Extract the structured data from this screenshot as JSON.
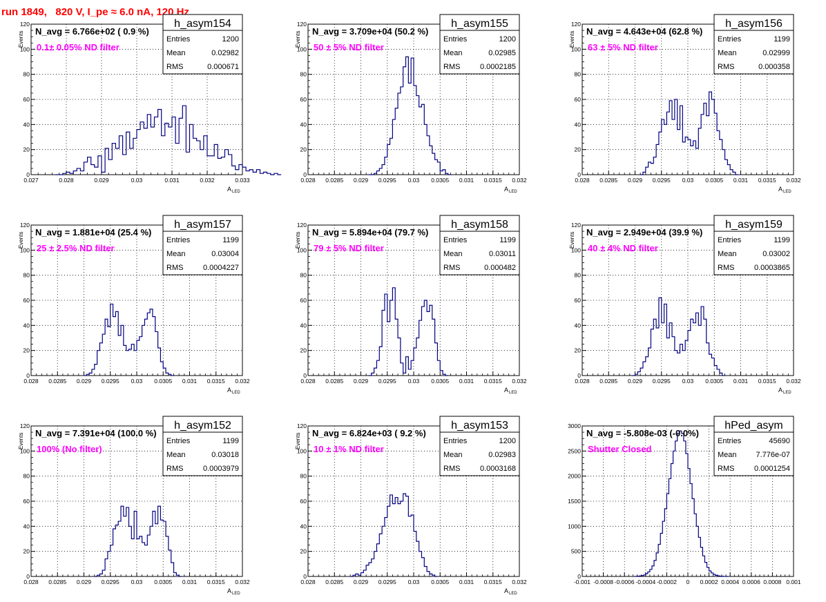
{
  "page": {
    "run_title": "run 1849,   820 V, I_pe ≈ 6.0 nA, 120 Hz"
  },
  "colors": {
    "histogram_line": "#000080",
    "annotation_magenta": "#ff00ff",
    "title_red": "#ff0000",
    "grid": "#000000"
  },
  "chart_data": [
    {
      "type": "histogram",
      "name": "h_asym154",
      "nd_label": "N_avg = 6.766e+02 ( 0.9 %)",
      "filter_label": "0.1± 0.05% ND filter",
      "stats": {
        "entries_label": "Entries",
        "entries": "1200",
        "mean_label": "Mean",
        "mean": "0.02982",
        "rms_label": "RMS",
        "rms": "0.000671"
      },
      "ylabel": "Events",
      "xlabel": "A",
      "xlabel_sub": "LED",
      "xlim": [
        0.027,
        0.033
      ],
      "ylim": [
        0,
        120
      ],
      "xticks": [
        "0.027",
        "0.028",
        "0.029",
        "0.03",
        "0.031",
        "0.032",
        "0.033"
      ],
      "xtick_values": [
        0.027,
        0.028,
        0.029,
        0.03,
        0.031,
        0.032,
        0.033
      ],
      "yticks": [
        "0",
        "20",
        "40",
        "60",
        "80",
        "100",
        "120"
      ],
      "bin_width": 0.0001,
      "x0": 0.0277,
      "values": [
        0,
        0,
        1,
        2,
        1,
        3,
        5,
        3,
        10,
        14,
        8,
        6,
        15,
        2,
        21,
        12,
        25,
        21,
        31,
        16,
        34,
        21,
        29,
        36,
        42,
        37,
        48,
        38,
        46,
        52,
        31,
        41,
        38,
        46,
        25,
        45,
        55,
        18,
        40,
        29,
        27,
        20,
        31,
        15,
        15,
        24,
        13,
        14,
        20,
        16,
        7,
        4,
        8,
        6,
        3,
        4,
        2,
        4,
        1,
        2,
        1,
        0,
        1,
        0
      ]
    },
    {
      "type": "histogram",
      "name": "h_asym155",
      "nd_label": "N_avg = 3.709e+04 (50.2 %)",
      "filter_label": " 50 ± 5% ND filter",
      "stats": {
        "entries_label": "Entries",
        "entries": "1200",
        "mean_label": "Mean",
        "mean": "0.02985",
        "rms_label": "RMS",
        "rms": "0.0002185"
      },
      "ylabel": "Events",
      "xlabel": "A",
      "xlabel_sub": "LED",
      "xlim": [
        0.028,
        0.032
      ],
      "ylim": [
        0,
        120
      ],
      "xticks": [
        "0.028",
        "0.0285",
        "0.029",
        "0.0295",
        "0.03",
        "0.0305",
        "0.031",
        "0.0315",
        "0.032"
      ],
      "xtick_values": [
        0.028,
        0.0285,
        0.029,
        0.0295,
        0.03,
        0.0305,
        0.031,
        0.0315,
        0.032
      ],
      "yticks": [
        "0",
        "20",
        "40",
        "60",
        "80",
        "100",
        "120"
      ],
      "bin_width": 5e-05,
      "x0": 0.02915,
      "values": [
        0,
        0,
        1,
        3,
        5,
        8,
        14,
        24,
        29,
        44,
        53,
        65,
        70,
        86,
        94,
        73,
        93,
        71,
        63,
        54,
        56,
        40,
        31,
        23,
        17,
        12,
        10,
        3,
        4,
        1,
        0
      ]
    },
    {
      "type": "histogram",
      "name": "h_asym156",
      "nd_label": "N_avg = 4.643e+04 (62.8 %)",
      "filter_label": " 63 ± 5% ND filter",
      "stats": {
        "entries_label": "Entries",
        "entries": "1199",
        "mean_label": "Mean",
        "mean": "0.02999",
        "rms_label": "RMS",
        "rms": "0.000358"
      },
      "ylabel": "Events",
      "xlabel": "A",
      "xlabel_sub": "LED",
      "xlim": [
        0.028,
        0.032
      ],
      "ylim": [
        0,
        120
      ],
      "xticks": [
        "0.028",
        "0.0285",
        "0.029",
        "0.0295",
        "0.03",
        "0.0305",
        "0.031",
        "0.0315",
        "0.032"
      ],
      "xtick_values": [
        0.028,
        0.0285,
        0.029,
        0.0295,
        0.03,
        0.0305,
        0.031,
        0.0315,
        0.032
      ],
      "yticks": [
        "0",
        "20",
        "40",
        "60",
        "80",
        "100",
        "120"
      ],
      "bin_width": 5e-05,
      "x0": 0.0291,
      "values": [
        0,
        2,
        6,
        10,
        9,
        14,
        24,
        34,
        44,
        40,
        50,
        59,
        44,
        60,
        36,
        55,
        26,
        30,
        28,
        23,
        27,
        21,
        37,
        48,
        57,
        47,
        66,
        60,
        49,
        35,
        28,
        20,
        12,
        8,
        4,
        2,
        0
      ]
    },
    {
      "type": "histogram",
      "name": "h_asym157",
      "nd_label": "N_avg = 1.881e+04 (25.4 %)",
      "filter_label": " 25 ± 2.5% ND filter",
      "stats": {
        "entries_label": "Entries",
        "entries": "1199",
        "mean_label": "Mean",
        "mean": "0.03004",
        "rms_label": "RMS",
        "rms": "0.0004227"
      },
      "ylabel": "Events",
      "xlabel": "A",
      "xlabel_sub": "LED",
      "xlim": [
        0.028,
        0.032
      ],
      "ylim": [
        0,
        120
      ],
      "xticks": [
        "0.028",
        "0.0285",
        "0.029",
        "0.0295",
        "0.03",
        "0.0305",
        "0.031",
        "0.0315",
        "0.032"
      ],
      "xtick_values": [
        0.028,
        0.0285,
        0.029,
        0.0295,
        0.03,
        0.0305,
        0.031,
        0.0315,
        0.032
      ],
      "yticks": [
        "0",
        "20",
        "40",
        "60",
        "80",
        "100",
        "120"
      ],
      "bin_width": 5e-05,
      "x0": 0.029,
      "values": [
        0,
        1,
        2,
        5,
        9,
        20,
        26,
        33,
        45,
        39,
        57,
        47,
        51,
        32,
        40,
        24,
        20,
        21,
        25,
        20,
        28,
        31,
        40,
        45,
        50,
        53,
        47,
        35,
        22,
        11,
        6,
        2,
        1,
        0
      ]
    },
    {
      "type": "histogram",
      "name": "h_asym158",
      "nd_label": "N_avg = 5.894e+04 (79.7 %)",
      "filter_label": " 79 ± 5% ND filter",
      "stats": {
        "entries_label": "Entries",
        "entries": "1199",
        "mean_label": "Mean",
        "mean": "0.03011",
        "rms_label": "RMS",
        "rms": "0.000482"
      },
      "ylabel": "Events",
      "xlabel": "A",
      "xlabel_sub": "LED",
      "xlim": [
        0.028,
        0.032
      ],
      "ylim": [
        0,
        120
      ],
      "xticks": [
        "0.028",
        "0.0285",
        "0.029",
        "0.0295",
        "0.03",
        "0.0305",
        "0.031",
        "0.0315",
        "0.032"
      ],
      "xtick_values": [
        0.028,
        0.0285,
        0.029,
        0.0295,
        0.03,
        0.0305,
        0.031,
        0.0315,
        0.032
      ],
      "yticks": [
        "0",
        "20",
        "40",
        "60",
        "80",
        "100",
        "120"
      ],
      "bin_width": 5e-05,
      "x0": 0.02915,
      "values": [
        0,
        2,
        6,
        12,
        23,
        52,
        65,
        43,
        60,
        70,
        45,
        30,
        10,
        2,
        15,
        5,
        12,
        22,
        30,
        44,
        55,
        60,
        51,
        56,
        45,
        26,
        12,
        4,
        1,
        0
      ]
    },
    {
      "type": "histogram",
      "name": "h_asym159",
      "nd_label": "N_avg = 2.949e+04 (39.9 %)",
      "filter_label": " 40 ± 4% ND filter",
      "stats": {
        "entries_label": "Entries",
        "entries": "1199",
        "mean_label": "Mean",
        "mean": "0.03002",
        "rms_label": "RMS",
        "rms": "0.0003865"
      },
      "ylabel": "Events",
      "xlabel": "A",
      "xlabel_sub": "LED",
      "xlim": [
        0.028,
        0.032
      ],
      "ylim": [
        0,
        120
      ],
      "xticks": [
        "0.028",
        "0.0285",
        "0.029",
        "0.0295",
        "0.03",
        "0.0305",
        "0.031",
        "0.0315",
        "0.032"
      ],
      "xtick_values": [
        0.028,
        0.0285,
        0.029,
        0.0295,
        0.03,
        0.0305,
        0.031,
        0.0315,
        0.032
      ],
      "yticks": [
        "0",
        "20",
        "40",
        "60",
        "80",
        "100",
        "120"
      ],
      "bin_width": 5e-05,
      "x0": 0.02895,
      "values": [
        0,
        1,
        3,
        6,
        11,
        15,
        22,
        37,
        45,
        38,
        62,
        42,
        57,
        30,
        42,
        31,
        20,
        18,
        25,
        20,
        28,
        36,
        45,
        42,
        50,
        40,
        55,
        45,
        26,
        17,
        14,
        8,
        5,
        2,
        0
      ]
    },
    {
      "type": "histogram",
      "name": "h_asym152",
      "nd_label": "N_avg = 7.391e+04 (100.0 %)",
      "filter_label": " 100% (No filter)",
      "stats": {
        "entries_label": "Entries",
        "entries": "1199",
        "mean_label": "Mean",
        "mean": "0.03018",
        "rms_label": "RMS",
        "rms": "0.0003979"
      },
      "ylabel": "Events",
      "xlabel": "A",
      "xlabel_sub": "LED",
      "xlim": [
        0.028,
        0.032
      ],
      "ylim": [
        0,
        120
      ],
      "xticks": [
        "0.028",
        "0.0285",
        "0.029",
        "0.0295",
        "0.03",
        "0.0305",
        "0.031",
        "0.0315",
        "0.032"
      ],
      "xtick_values": [
        0.028,
        0.0285,
        0.029,
        0.0295,
        0.03,
        0.0305,
        0.031,
        0.0315,
        0.032
      ],
      "yticks": [
        "0",
        "20",
        "40",
        "60",
        "80",
        "100",
        "120"
      ],
      "bin_width": 5e-05,
      "x0": 0.0292,
      "values": [
        0,
        1,
        2,
        5,
        14,
        20,
        25,
        38,
        41,
        44,
        56,
        48,
        55,
        40,
        30,
        52,
        30,
        32,
        27,
        25,
        33,
        40,
        52,
        42,
        56,
        45,
        44,
        32,
        21,
        11,
        3,
        1,
        0
      ]
    },
    {
      "type": "histogram",
      "name": "h_asym153",
      "nd_label": "N_avg = 6.824e+03 ( 9.2 %)",
      "filter_label": "10 ± 1% ND filter",
      "stats": {
        "entries_label": "Entries",
        "entries": "1200",
        "mean_label": "Mean",
        "mean": "0.02983",
        "rms_label": "RMS",
        "rms": "0.0003168"
      },
      "ylabel": "Events",
      "xlabel": "A",
      "xlabel_sub": "LED",
      "xlim": [
        0.028,
        0.032
      ],
      "ylim": [
        0,
        120
      ],
      "xticks": [
        "0.028",
        "0.0285",
        "0.029",
        "0.0295",
        "0.03",
        "0.0305",
        "0.031",
        "0.0315",
        "0.032"
      ],
      "xtick_values": [
        0.028,
        0.0285,
        0.029,
        0.0295,
        0.03,
        0.0305,
        0.031,
        0.0315,
        0.032
      ],
      "yticks": [
        "0",
        "20",
        "40",
        "60",
        "80",
        "100",
        "120"
      ],
      "bin_width": 5e-05,
      "x0": 0.0288,
      "values": [
        0,
        1,
        2,
        1,
        3,
        5,
        9,
        11,
        14,
        20,
        26,
        34,
        40,
        47,
        56,
        65,
        58,
        63,
        58,
        60,
        66,
        64,
        48,
        49,
        36,
        28,
        20,
        15,
        8,
        4,
        2,
        1,
        0
      ]
    },
    {
      "type": "histogram",
      "name": "hPed_asym",
      "nd_label": "N_avg = -5.808e-03 (-0.0%)",
      "filter_label": "Shutter Closed",
      "stats": {
        "entries_label": "Entries",
        "entries": "45690",
        "mean_label": "Mean",
        "mean": "7.776e-07",
        "rms_label": "RMS",
        "rms": "0.0001254"
      },
      "ylabel": "",
      "xlabel": "",
      "xlabel_sub": "",
      "xlim": [
        -0.001,
        0.001
      ],
      "ylim": [
        0,
        3000
      ],
      "xticks": [
        "-0.001",
        "-0.0008",
        "-0.0006",
        "-0.0004",
        "-0.0002",
        "0",
        "0.0002",
        "0.0004",
        "0.0006",
        "0.0008",
        "0.001"
      ],
      "xtick_values": [
        -0.001,
        -0.0008,
        -0.0006,
        -0.0004,
        -0.0002,
        0,
        0.0002,
        0.0004,
        0.0006,
        0.0008,
        0.001
      ],
      "yticks": [
        "0",
        "500",
        "1000",
        "1500",
        "2000",
        "2500",
        "3000"
      ],
      "bin_width": 2e-05,
      "x0": -0.0005,
      "values": [
        2,
        5,
        10,
        18,
        30,
        55,
        90,
        140,
        210,
        320,
        470,
        640,
        860,
        1100,
        1350,
        1650,
        1950,
        2250,
        2500,
        2700,
        2850,
        2900,
        2850,
        2700,
        2450,
        2150,
        1850,
        1550,
        1250,
        1000,
        780,
        580,
        410,
        280,
        180,
        110,
        70,
        40,
        22,
        12,
        6,
        3,
        1,
        0
      ]
    }
  ]
}
